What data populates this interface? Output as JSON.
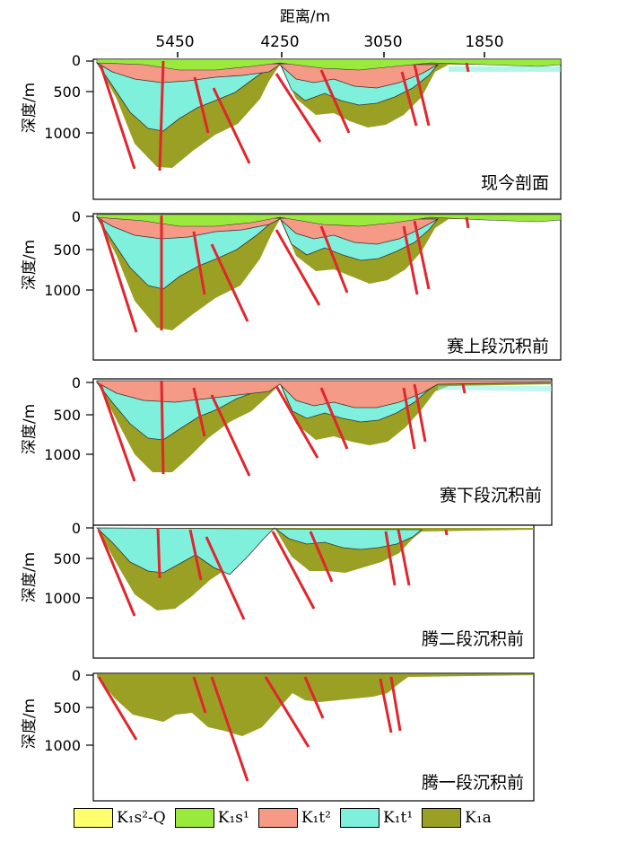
{
  "header": {
    "xaxis_title": "距离/m",
    "distance_ticks": [
      "5450",
      "4250",
      "3050",
      "1850"
    ]
  },
  "panels": [
    {
      "caption": "现今剖面",
      "ylabel": "深度/m",
      "yticks": [
        "0",
        "500",
        "1000"
      ]
    },
    {
      "caption": "赛上段沉积前",
      "ylabel": "深度/m",
      "yticks": [
        "0",
        "500",
        "1000"
      ]
    },
    {
      "caption": "赛下段沉积前",
      "ylabel": "深度/m",
      "yticks": [
        "0",
        "500",
        "1000"
      ]
    },
    {
      "caption": "腾二段沉积前",
      "ylabel": "深度/m",
      "yticks": [
        "0",
        "500",
        "1000"
      ]
    },
    {
      "caption": "腾一段沉积前",
      "ylabel": "深度/m",
      "yticks": [
        "0",
        "500",
        "1000"
      ]
    }
  ],
  "legend": [
    {
      "label": "K₁s²-Q",
      "color": "#ffff6e"
    },
    {
      "label": "K₁s¹",
      "color": "#9aea3e"
    },
    {
      "label": "K₁t²",
      "color": "#f49a86"
    },
    {
      "label": "K₁t¹",
      "color": "#7ff0dc"
    },
    {
      "label": "K₁a",
      "color": "#9aa024"
    }
  ],
  "colors": {
    "fault": "#e0262e",
    "K1a": "#9aa024",
    "K1t1": "#7ff0dc",
    "K1t2": "#f49a86",
    "K1s1": "#9aea3e"
  }
}
